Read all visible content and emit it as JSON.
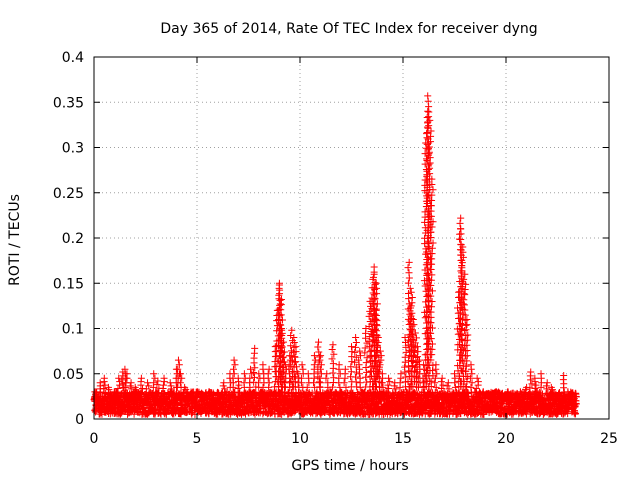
{
  "chart_data": {
    "type": "scatter",
    "title": "Day 365 of 2014, Rate Of TEC Index for receiver dyng",
    "xlabel": "GPS time / hours",
    "ylabel": "ROTI / TECUs",
    "xlim": [
      0,
      25
    ],
    "ylim": [
      0,
      0.4
    ],
    "x_ticks": [
      0,
      5,
      10,
      15,
      20,
      25
    ],
    "x_tick_labels": [
      "0",
      "5",
      "10",
      "15",
      "20",
      "25"
    ],
    "y_ticks": [
      0,
      0.05,
      0.1,
      0.15,
      0.2,
      0.25,
      0.3,
      0.35,
      0.4
    ],
    "y_tick_labels": [
      "0",
      "0.05",
      "0.1",
      "0.15",
      "0.2",
      "0.25",
      "0.3",
      "0.35",
      "0.4"
    ],
    "grid": true,
    "marker": "+",
    "color": "#ff0000",
    "baseline": {
      "x_range": [
        0,
        23.4
      ],
      "typical_low": 0.005,
      "typical_high": 0.03
    },
    "series": [
      {
        "name": "ROTI",
        "x": [
          0.1,
          0.3,
          0.5,
          0.7,
          1.0,
          1.2,
          1.4,
          1.5,
          1.6,
          1.8,
          2.0,
          2.3,
          2.6,
          2.9,
          3.1,
          3.4,
          3.7,
          4.0,
          4.1,
          4.2,
          4.4,
          4.7,
          5.0,
          5.3,
          5.6,
          6.0,
          6.3,
          6.6,
          6.8,
          7.0,
          7.3,
          7.6,
          7.8,
          8.0,
          8.2,
          8.5,
          8.8,
          8.9,
          9.0,
          9.0,
          9.1,
          9.1,
          9.2,
          9.3,
          9.5,
          9.6,
          9.7,
          9.8,
          9.9,
          10.1,
          10.4,
          10.7,
          10.9,
          11.0,
          11.3,
          11.6,
          11.9,
          12.2,
          12.5,
          12.7,
          12.9,
          13.2,
          13.4,
          13.5,
          13.6,
          13.6,
          13.7,
          13.7,
          13.8,
          13.9,
          14.0,
          14.3,
          14.6,
          14.9,
          15.1,
          15.3,
          15.4,
          15.4,
          15.5,
          15.6,
          15.7,
          15.8,
          16.0,
          16.1,
          16.2,
          16.2,
          16.3,
          16.4,
          16.6,
          16.9,
          17.2,
          17.5,
          17.7,
          17.8,
          17.8,
          17.9,
          18.0,
          18.1,
          18.3,
          18.6,
          18.9,
          19.2,
          19.5,
          19.8,
          20.1,
          20.4,
          20.7,
          21.0,
          21.2,
          21.4,
          21.7,
          22.0,
          22.2,
          22.5,
          22.8,
          23.0,
          23.2,
          23.4
        ],
        "y": [
          0.03,
          0.04,
          0.045,
          0.035,
          0.03,
          0.045,
          0.052,
          0.055,
          0.05,
          0.04,
          0.035,
          0.045,
          0.04,
          0.05,
          0.042,
          0.045,
          0.04,
          0.055,
          0.065,
          0.05,
          0.035,
          0.025,
          0.03,
          0.025,
          0.03,
          0.028,
          0.04,
          0.05,
          0.065,
          0.045,
          0.05,
          0.055,
          0.078,
          0.05,
          0.06,
          0.055,
          0.08,
          0.12,
          0.15,
          0.148,
          0.132,
          0.1,
          0.085,
          0.06,
          0.07,
          0.098,
          0.09,
          0.08,
          0.05,
          0.06,
          0.05,
          0.07,
          0.085,
          0.07,
          0.05,
          0.082,
          0.06,
          0.055,
          0.08,
          0.09,
          0.075,
          0.1,
          0.13,
          0.145,
          0.168,
          0.16,
          0.15,
          0.12,
          0.09,
          0.075,
          0.05,
          0.045,
          0.04,
          0.05,
          0.09,
          0.173,
          0.14,
          0.125,
          0.11,
          0.095,
          0.08,
          0.065,
          0.06,
          0.305,
          0.357,
          0.34,
          0.33,
          0.265,
          0.06,
          0.045,
          0.04,
          0.05,
          0.14,
          0.222,
          0.21,
          0.19,
          0.16,
          0.11,
          0.06,
          0.045,
          0.03,
          0.025,
          0.03,
          0.025,
          0.03,
          0.025,
          0.03,
          0.035,
          0.052,
          0.045,
          0.05,
          0.04,
          0.035,
          0.025,
          0.048,
          0.03,
          0.025,
          0.02
        ]
      }
    ]
  }
}
